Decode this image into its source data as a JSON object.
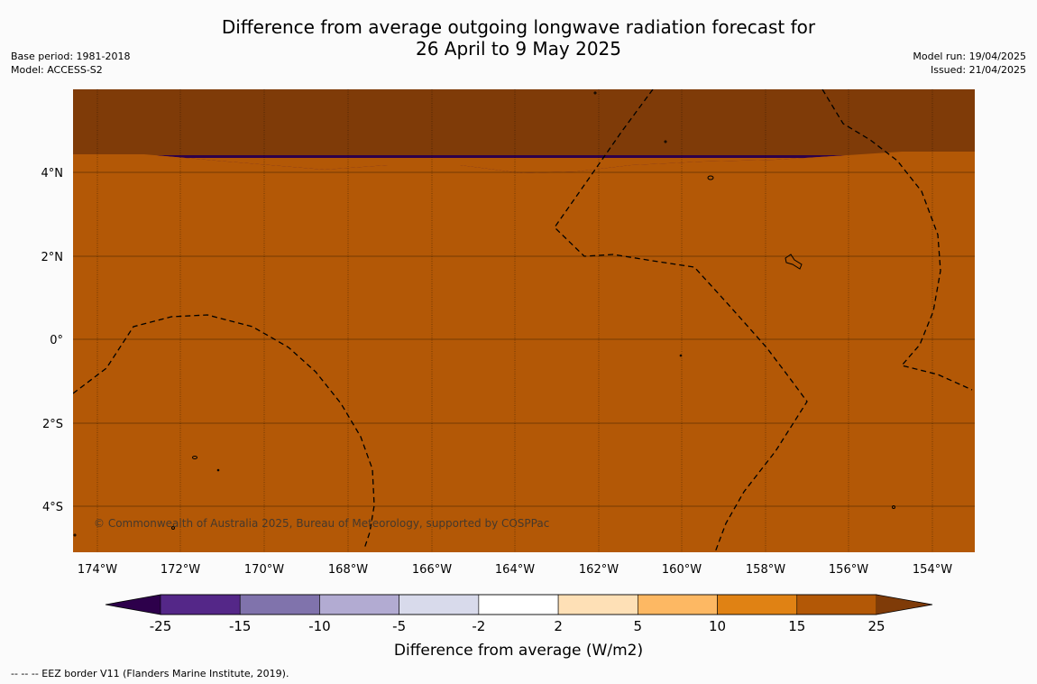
{
  "title": {
    "line1": "Difference from average outgoing longwave radiation forecast for",
    "line2": "26 April to 9 May 2025"
  },
  "meta": {
    "base_period": "Base period: 1981-2018",
    "model": "Model: ACCESS-S2",
    "model_run": "Model run: 19/04/2025",
    "issued": "Issued: 21/04/2025"
  },
  "map": {
    "copyright": "© Commonwealth of Australia 2025, Bureau of Meteorology, supported by COSPPac",
    "x_ticks": [
      "174°W",
      "172°W",
      "170°W",
      "168°W",
      "166°W",
      "164°W",
      "162°W",
      "160°W",
      "158°W",
      "156°W",
      "154°W"
    ],
    "y_ticks": [
      "4°N",
      "2°N",
      "0°",
      "2°S",
      "4°S"
    ],
    "eez_style": "dashed black",
    "land_style": "black outline"
  },
  "colorbar": {
    "label": "Difference from average (W/m2)",
    "ticks": [
      "-25",
      "-15",
      "-10",
      "-5",
      "-2",
      "2",
      "5",
      "10",
      "15",
      "25"
    ],
    "colors": [
      "#2d004b",
      "#542788",
      "#8073ac",
      "#b2abd2",
      "#d8daeb",
      "#ffffff",
      "#fee0b6",
      "#fdb863",
      "#e08214",
      "#b35806",
      "#7f3b08"
    ]
  },
  "footer": {
    "legend_text": "--  --  -- EEZ border V11 (Flanders Marine Institute, 2019)."
  }
}
